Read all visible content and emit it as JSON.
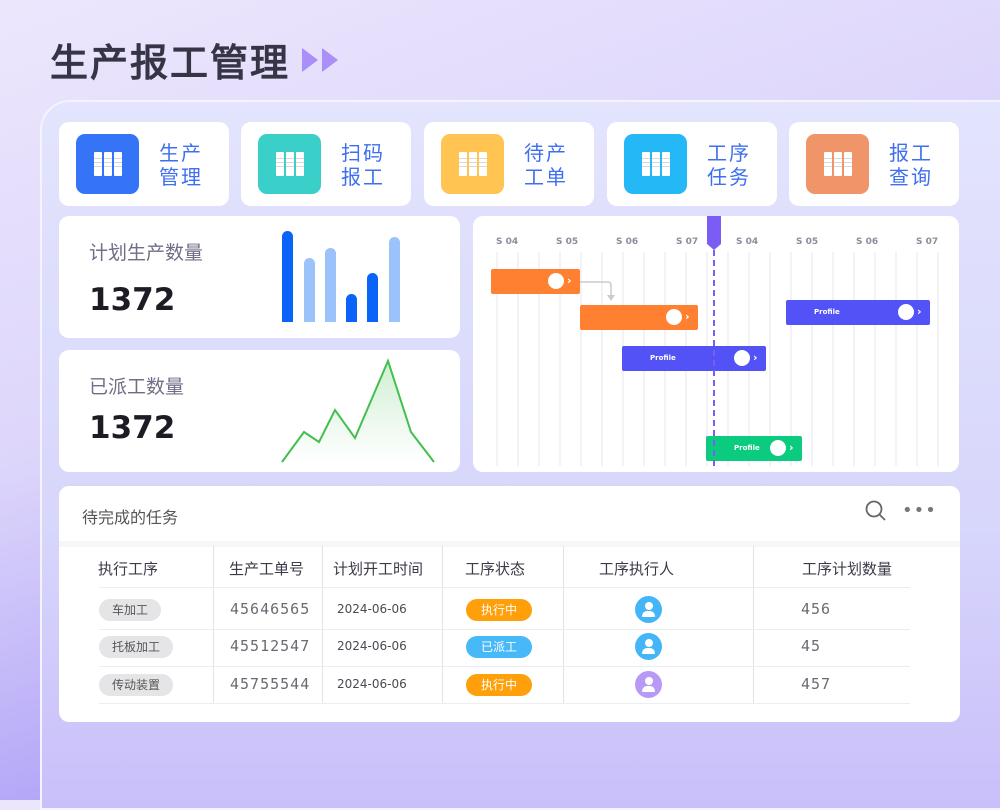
{
  "page": {
    "title": "生产报工管理"
  },
  "nav": [
    {
      "label": "生产管理",
      "color": "#3574f6",
      "icon": "books-icon"
    },
    {
      "label": "扫码报工",
      "color": "#3acfc8",
      "icon": "books-icon"
    },
    {
      "label": "待产工单",
      "color": "#ffc452",
      "icon": "books-icon"
    },
    {
      "label": "工序任务",
      "color": "#25b8f7",
      "icon": "books-icon"
    },
    {
      "label": "报工查询",
      "color": "#f0946a",
      "icon": "books-icon"
    }
  ],
  "stats": [
    {
      "label": "计划生产数量",
      "value": "1372",
      "sparkbars": [
        91,
        64,
        74,
        28,
        49,
        85
      ],
      "bar_colors": [
        "#0a64f8",
        "#9cc2fc",
        "#9cc2fc",
        "#0a64f8",
        "#0a64f8",
        "#9cc2fc"
      ]
    },
    {
      "label": "已派工数量",
      "value": "1372",
      "sparkline": [
        0,
        30,
        20,
        52,
        24,
        101,
        30,
        0
      ],
      "line_color": "#43bf4f"
    }
  ],
  "gantt": {
    "columns": [
      "S 04",
      "S 05",
      "S 06",
      "S 07",
      "S 04",
      "S 05",
      "S 06",
      "S 07"
    ],
    "bars": [
      {
        "label": "",
        "color": "#ff8030"
      },
      {
        "label": "",
        "color": "#ff8030"
      },
      {
        "label": "Profile",
        "color": "#5252f7"
      },
      {
        "label": "Profile",
        "color": "#5252f7"
      },
      {
        "label": "Profile",
        "color": "#0bcb7f"
      }
    ],
    "marker_color": "#7b5cf5"
  },
  "tasks": {
    "title": "待完成的任务",
    "headers": [
      "执行工序",
      "生产工单号",
      "计划开工时间",
      "工序状态",
      "工序执行人",
      "工序计划数量"
    ],
    "rows": [
      {
        "process": "车加工",
        "order": "45646565",
        "date": "2024-06-06",
        "status": "执行中",
        "status_color": "#ff9f0a",
        "avatar_color": "#44b6f8",
        "qty": "456"
      },
      {
        "process": "托板加工",
        "order": "45512547",
        "date": "2024-06-06",
        "status": "已派工",
        "status_color": "#47b8f8",
        "avatar_color": "#44b6f8",
        "qty": "45"
      },
      {
        "process": "传动装置",
        "order": "45755544",
        "date": "2024-06-06",
        "status": "执行中",
        "status_color": "#ff9f0a",
        "avatar_color": "#b69af5",
        "qty": "457"
      }
    ]
  }
}
